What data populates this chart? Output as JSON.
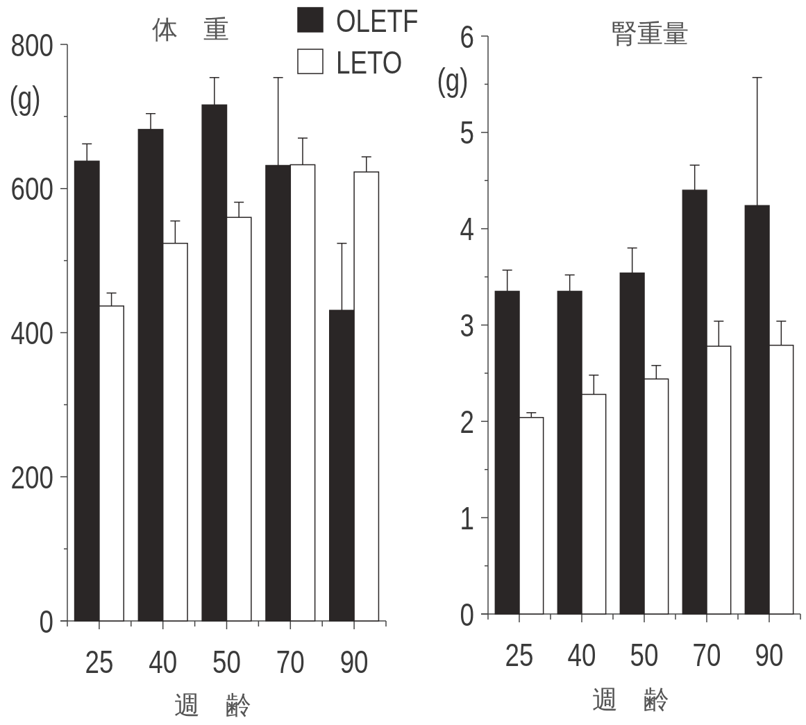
{
  "chart_data": [
    {
      "type": "bar",
      "title": "体　重",
      "ylabel": "(g)",
      "xlabel": "週　齢",
      "categories": [
        "25",
        "40",
        "50",
        "70",
        "90"
      ],
      "series": [
        {
          "name": "OLETF",
          "color": "#2a2626",
          "values": [
            638,
            682,
            716,
            632,
            431
          ],
          "errors": [
            [
              638,
              662
            ],
            [
              682,
              704
            ],
            [
              716,
              754
            ],
            [
              632,
              754
            ],
            [
              431,
              524
            ]
          ]
        },
        {
          "name": "LETO",
          "color": "#ffffff",
          "values": [
            437,
            524,
            560,
            633,
            623
          ],
          "errors": [
            [
              437,
              455
            ],
            [
              524,
              555
            ],
            [
              560,
              581
            ],
            [
              633,
              670
            ],
            [
              623,
              644
            ]
          ]
        }
      ],
      "ylim": [
        0,
        800
      ],
      "yticks": [
        0,
        {
          "value": 100,
          "label": null
        },
        200,
        {
          "value": 300,
          "label": null
        },
        400,
        {
          "value": 500,
          "label": null
        },
        600,
        {
          "value": 700,
          "label": null
        },
        800
      ],
      "legend": "top right"
    },
    {
      "type": "bar",
      "title": "腎重量",
      "ylabel": "(g)",
      "xlabel": "週　齢",
      "categories": [
        "25",
        "40",
        "50",
        "70",
        "90"
      ],
      "series": [
        {
          "color": "#2a2626",
          "values": [
            3.35,
            3.35,
            3.54,
            4.4,
            4.24
          ],
          "errors": [
            [
              3.35,
              3.57
            ],
            [
              3.35,
              3.52
            ],
            [
              3.54,
              3.8
            ],
            [
              4.4,
              4.66
            ],
            [
              4.24,
              5.57
            ]
          ]
        },
        {
          "color": "#ffffff",
          "values": [
            2.04,
            2.28,
            2.44,
            2.78,
            2.79
          ],
          "errors": [
            [
              2.04,
              2.09
            ],
            [
              2.28,
              2.48
            ],
            [
              2.44,
              2.58
            ],
            [
              2.78,
              3.04
            ],
            [
              2.79,
              3.04
            ]
          ]
        }
      ],
      "ylim": [
        0,
        6
      ],
      "yticks": [
        0,
        {
          "value": 0.5,
          "label": null
        },
        1,
        {
          "value": 1.5,
          "label": null
        },
        2,
        {
          "value": 2.5,
          "label": null
        },
        3,
        {
          "value": 3.5,
          "label": null
        },
        4,
        {
          "value": 4.5,
          "label": null
        },
        5,
        {
          "value": 5.5,
          "label": null
        },
        6
      ]
    }
  ]
}
